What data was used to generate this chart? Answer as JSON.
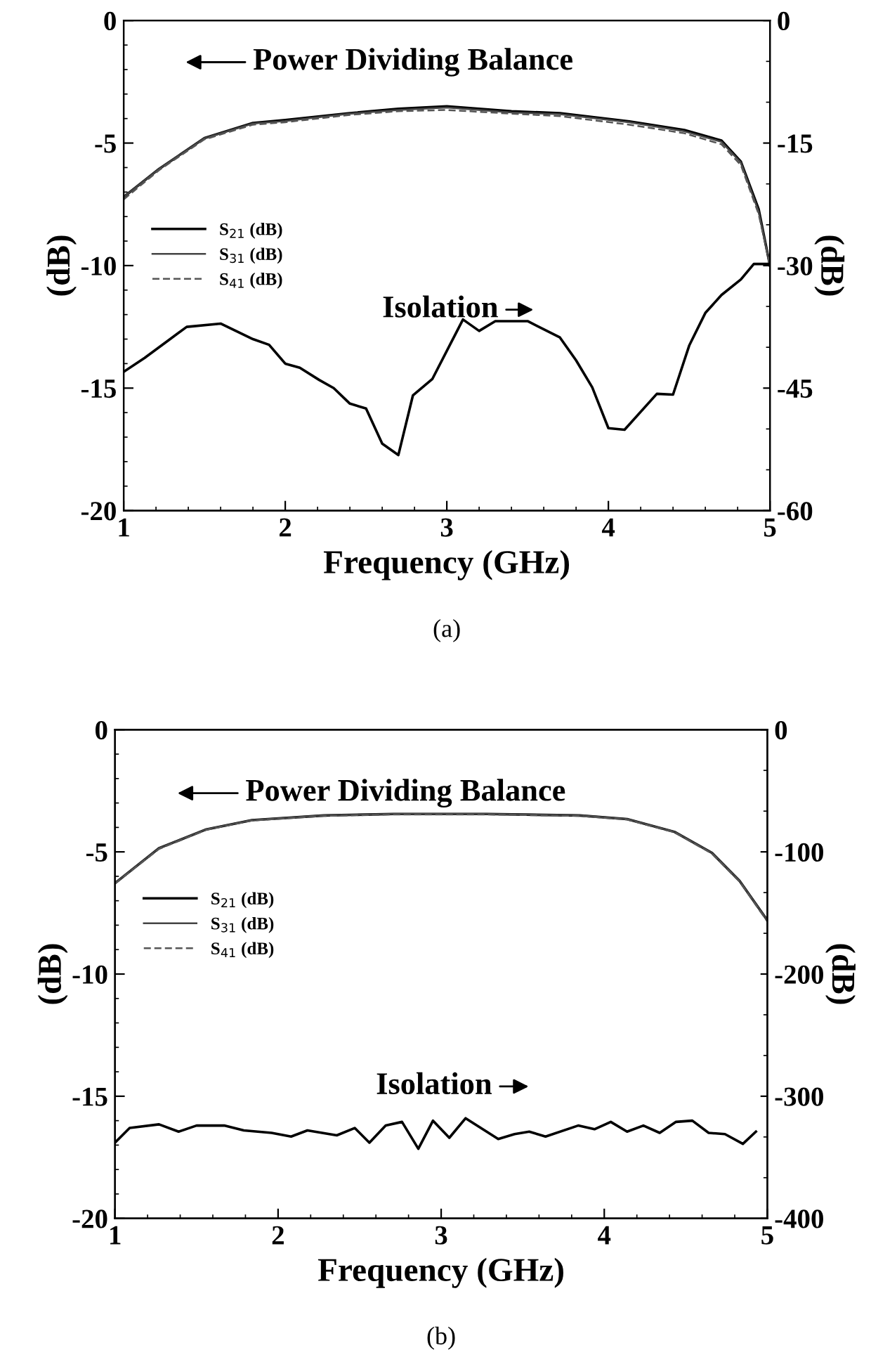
{
  "chart_data": [
    {
      "type": "line",
      "xlabel": "Frequency (GHz)",
      "ylabel": "(dB)",
      "y2label": "(dB)",
      "xlim": [
        1,
        5
      ],
      "xticks": [
        1,
        2,
        3,
        4,
        5
      ],
      "ylim": [
        -20,
        0
      ],
      "yticks": [
        -20,
        -15,
        -10,
        -5,
        0
      ],
      "y2lim": [
        -60,
        0
      ],
      "y2ticks": [
        -60,
        -45,
        -30,
        -15,
        0
      ],
      "legend": "left",
      "grid": false,
      "marker": "none",
      "annotations": [
        "Power Dividing Balance",
        "Isolation",
        "(a)"
      ],
      "series": [
        {
          "name": "S$_{21}$ (dB)",
          "color": "#000000",
          "line_style": "solid",
          "x": [
            1.0,
            1.22,
            1.5,
            1.8,
            2.0,
            2.4,
            2.7,
            3.0,
            3.4,
            3.7,
            4.13,
            4.47,
            4.7,
            4.82,
            4.93,
            5.0
          ],
          "values": [
            -7.2,
            -6.05,
            -4.8,
            -4.18,
            -4.06,
            -3.78,
            -3.6,
            -3.5,
            -3.7,
            -3.78,
            -4.12,
            -4.47,
            -4.9,
            -5.76,
            -7.7,
            -10.0
          ]
        },
        {
          "name": "S$_{31}$ (dB)",
          "color": "#444444",
          "line_style": "solid",
          "x": [
            1.0,
            1.22,
            1.5,
            1.8,
            2.0,
            2.4,
            2.7,
            3.0,
            3.4,
            3.7,
            4.13,
            4.47,
            4.7,
            4.82,
            4.93,
            5.0
          ],
          "values": [
            -7.2,
            -6.05,
            -4.8,
            -4.2,
            -4.1,
            -3.8,
            -3.65,
            -3.55,
            -3.75,
            -3.82,
            -4.15,
            -4.52,
            -4.95,
            -5.8,
            -7.8,
            -10.0
          ]
        },
        {
          "name": "S$_{41}$ (dB)",
          "color": "#555555",
          "line_style": "dashed",
          "x": [
            1.0,
            1.22,
            1.5,
            1.8,
            2.0,
            2.4,
            2.7,
            3.0,
            3.4,
            3.7,
            4.13,
            4.47,
            4.7,
            4.82,
            4.93,
            5.0
          ],
          "values": [
            -7.3,
            -6.1,
            -4.85,
            -4.25,
            -4.15,
            -3.85,
            -3.7,
            -3.65,
            -3.8,
            -3.9,
            -4.25,
            -4.6,
            -5.05,
            -5.9,
            -7.9,
            -10.0
          ]
        },
        {
          "axis": "y2",
          "color": "#000000",
          "line_style": "solid",
          "x": [
            1.0,
            1.13,
            1.28,
            1.39,
            1.6,
            1.8,
            1.9,
            2.0,
            2.09,
            2.21,
            2.3,
            2.4,
            2.5,
            2.6,
            2.7,
            2.79,
            2.91,
            3.1,
            3.2,
            3.3,
            3.5,
            3.7,
            3.8,
            3.9,
            4.0,
            4.1,
            4.3,
            4.4,
            4.5,
            4.6,
            4.7,
            4.82,
            4.9,
            5.0
          ],
          "values": [
            -43,
            -41.3,
            -39.1,
            -37.5,
            -37.1,
            -39.0,
            -39.7,
            -42.0,
            -42.5,
            -44.0,
            -45.0,
            -46.9,
            -47.5,
            -51.8,
            -53.2,
            -45.9,
            -43.9,
            -36.6,
            -38.0,
            -36.8,
            -36.8,
            -38.8,
            -41.6,
            -44.9,
            -49.9,
            -50.1,
            -45.7,
            -45.8,
            -39.8,
            -35.8,
            -33.6,
            -31.7,
            -29.8,
            -29.8
          ]
        }
      ]
    },
    {
      "type": "line",
      "xlabel": "Frequency (GHz)",
      "ylabel": "(dB)",
      "y2label": "(dB)",
      "xlim": [
        1,
        5
      ],
      "xticks": [
        1,
        2,
        3,
        4,
        5
      ],
      "ylim": [
        -20,
        0
      ],
      "yticks": [
        -20,
        -15,
        -10,
        -5,
        0
      ],
      "y2lim": [
        -400,
        0
      ],
      "y2ticks": [
        -400,
        -300,
        -200,
        -100,
        0
      ],
      "legend": "left",
      "grid": false,
      "marker": "none",
      "annotations": [
        "Power Dividing Balance",
        "Isolation",
        "(b)"
      ],
      "series": [
        {
          "name": "S$_{21}$ (dB)",
          "color": "#000000",
          "line_style": "solid",
          "x": [
            1.0,
            1.27,
            1.56,
            1.84,
            2.28,
            2.71,
            3.28,
            3.85,
            4.14,
            4.43,
            4.66,
            4.83,
            4.93,
            5.0
          ],
          "values": [
            -6.28,
            -4.85,
            -4.08,
            -3.7,
            -3.51,
            -3.45,
            -3.45,
            -3.51,
            -3.66,
            -4.18,
            -5.04,
            -6.19,
            -7.14,
            -7.8
          ]
        },
        {
          "name": "S$_{31}$ (dB)",
          "color": "#444444",
          "line_style": "solid",
          "x": [
            1.0,
            1.27,
            1.56,
            1.84,
            2.28,
            2.71,
            3.28,
            3.85,
            4.14,
            4.43,
            4.66,
            4.83,
            4.93,
            5.0
          ],
          "values": [
            -6.28,
            -4.85,
            -4.08,
            -3.7,
            -3.51,
            -3.45,
            -3.45,
            -3.51,
            -3.66,
            -4.18,
            -5.04,
            -6.19,
            -7.14,
            -7.8
          ]
        },
        {
          "name": "S$_{41}$ (dB)",
          "color": "#555555",
          "line_style": "dashed",
          "x": [
            1.0,
            1.27,
            1.56,
            1.84,
            2.28,
            2.71,
            3.28,
            3.85,
            4.14,
            4.43,
            4.66,
            4.83,
            4.93,
            5.0
          ],
          "values": [
            -6.3,
            -4.88,
            -4.1,
            -3.72,
            -3.53,
            -3.47,
            -3.47,
            -3.53,
            -3.68,
            -4.2,
            -5.07,
            -6.22,
            -7.18,
            -7.85
          ]
        },
        {
          "axis": "y2",
          "color": "#000000",
          "line_style": "solid",
          "x": [
            1.0,
            1.09,
            1.27,
            1.39,
            1.5,
            1.67,
            1.79,
            1.96,
            2.08,
            2.18,
            2.36,
            2.47,
            2.56,
            2.66,
            2.76,
            2.86,
            2.95,
            3.05,
            3.15,
            3.35,
            3.45,
            3.54,
            3.64,
            3.84,
            3.94,
            4.04,
            4.14,
            4.24,
            4.34,
            4.44,
            4.54,
            4.64,
            4.74,
            4.85,
            4.93
          ],
          "values": [
            -338,
            -326,
            -323,
            -329,
            -324,
            -324,
            -328,
            -330,
            -333,
            -328,
            -332,
            -326,
            -338,
            -324,
            -321,
            -343,
            -320,
            -334,
            -318,
            -335,
            -331,
            -329,
            -333,
            -324,
            -327,
            -321,
            -329,
            -324,
            -330,
            -321,
            -320,
            -330,
            -331,
            -339,
            -329
          ]
        }
      ]
    }
  ]
}
